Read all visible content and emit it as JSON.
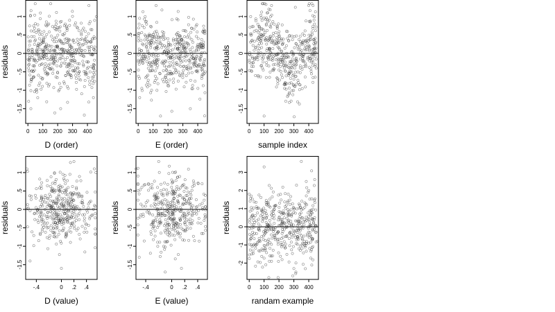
{
  "chart_data": [
    {
      "type": "scatter",
      "xlabel": "D (order)",
      "ylabel": "residuals",
      "xticks": [
        0,
        100,
        200,
        300,
        400
      ],
      "yticks": [
        -1.5,
        -1.0,
        -0.5,
        0.0,
        0.5,
        1.0
      ],
      "xlim": [
        -15,
        465
      ],
      "ylim": [
        -1.9,
        1.45
      ],
      "zero_line": 0,
      "point_count": 460,
      "series": [
        {
          "values": [
            [
              5,
              -1.3
            ],
            [
              20,
              -1.5
            ],
            [
              40,
              0.6
            ],
            [
              60,
              0.1
            ],
            [
              80,
              -0.8
            ],
            [
              100,
              0.3
            ],
            [
              140,
              0.8
            ],
            [
              160,
              -0.4
            ],
            [
              200,
              0.2
            ],
            [
              220,
              -1.5
            ],
            [
              240,
              0.5
            ],
            [
              280,
              0.9
            ],
            [
              300,
              -0.2
            ],
            [
              340,
              0.1
            ],
            [
              380,
              -0.9
            ],
            [
              410,
              1.3
            ],
            [
              440,
              -1.2
            ],
            [
              460,
              1.0
            ]
          ]
        }
      ]
    },
    {
      "type": "scatter",
      "xlabel": "E (order)",
      "ylabel": "residuals",
      "xticks": [
        0,
        100,
        200,
        300,
        400
      ],
      "yticks": [
        -1.5,
        -1.0,
        -0.5,
        0.0,
        0.5,
        1.0
      ],
      "xlim": [
        -15,
        465
      ],
      "ylim": [
        -1.9,
        1.45
      ],
      "zero_line": 0,
      "point_count": 460,
      "series": [
        {
          "values": [
            [
              10,
              -1.2
            ],
            [
              40,
              0.7
            ],
            [
              90,
              -1.0
            ],
            [
              120,
              1.3
            ],
            [
              150,
              -1.7
            ],
            [
              200,
              0.4
            ],
            [
              260,
              -0.3
            ],
            [
              320,
              0.6
            ],
            [
              350,
              -1.5
            ],
            [
              400,
              0.2
            ],
            [
              450,
              -0.5
            ]
          ]
        }
      ]
    },
    {
      "type": "scatter",
      "xlabel": "sample index",
      "ylabel": "residuals",
      "xticks": [
        0,
        100,
        200,
        300,
        400
      ],
      "yticks": [
        -1.5,
        -1.0,
        -0.5,
        0.0,
        0.5,
        1.0
      ],
      "xlim": [
        -15,
        465
      ],
      "ylim": [
        -1.9,
        1.45
      ],
      "zero_line": 0,
      "point_count": 460,
      "series": [
        {
          "values": [
            [
              10,
              1.0
            ],
            [
              60,
              -0.6
            ],
            [
              100,
              -1.7
            ],
            [
              150,
              1.3
            ],
            [
              200,
              0.3
            ],
            [
              250,
              0.6
            ],
            [
              300,
              -0.7
            ],
            [
              360,
              -0.2
            ],
            [
              400,
              1.3
            ],
            [
              450,
              -0.4
            ]
          ]
        }
      ]
    },
    {
      "type": "scatter",
      "xlabel": "D (value)",
      "ylabel": "residuals",
      "xticks": [
        -0.4,
        0.0,
        0.2,
        0.4
      ],
      "yticks": [
        -1.5,
        -1.0,
        -0.5,
        0.0,
        0.5,
        1.0
      ],
      "xlim": [
        -0.57,
        0.57
      ],
      "ylim": [
        -1.9,
        1.45
      ],
      "zero_line": 0,
      "point_count": 380,
      "series": [
        {
          "values": [
            [
              -0.55,
              1.1
            ],
            [
              -0.5,
              -1.4
            ],
            [
              -0.3,
              0.2
            ],
            [
              -0.1,
              0.7
            ],
            [
              0.0,
              -1.6
            ],
            [
              0.05,
              0.3
            ],
            [
              0.2,
              1.3
            ],
            [
              0.3,
              -0.8
            ],
            [
              0.45,
              0.2
            ],
            [
              0.55,
              1.0
            ]
          ]
        }
      ]
    },
    {
      "type": "scatter",
      "xlabel": "E (value)",
      "ylabel": "residuals",
      "xticks": [
        -0.4,
        0.0,
        0.2,
        0.4
      ],
      "yticks": [
        -1.5,
        -1.0,
        -0.5,
        0.0,
        0.5,
        1.0
      ],
      "xlim": [
        -0.55,
        0.55
      ],
      "ylim": [
        -1.9,
        1.45
      ],
      "zero_line": 0,
      "point_count": 380,
      "series": [
        {
          "values": [
            [
              -0.55,
              1.1
            ],
            [
              -0.5,
              -1.3
            ],
            [
              -0.2,
              1.3
            ],
            [
              -0.1,
              -1.7
            ],
            [
              0.0,
              0.8
            ],
            [
              0.05,
              -0.4
            ],
            [
              0.15,
              -1.6
            ],
            [
              0.3,
              0.3
            ],
            [
              0.5,
              -0.3
            ]
          ]
        }
      ]
    },
    {
      "type": "scatter",
      "xlabel": "randam example",
      "ylabel": "residuals",
      "xticks": [
        0,
        100,
        200,
        300,
        400
      ],
      "yticks": [
        -2,
        -1,
        0,
        1,
        2,
        3
      ],
      "xlim": [
        -15,
        465
      ],
      "ylim": [
        -2.9,
        3.9
      ],
      "zero_line": 0,
      "point_count": 460,
      "series": [
        {
          "values": [
            [
              0,
              1.8
            ],
            [
              100,
              3.3
            ],
            [
              150,
              -1.9
            ],
            [
              220,
              0.4
            ],
            [
              300,
              -2.3
            ],
            [
              350,
              3.6
            ],
            [
              400,
              2.0
            ],
            [
              440,
              2.6
            ],
            [
              460,
              -0.8
            ]
          ]
        }
      ]
    }
  ]
}
